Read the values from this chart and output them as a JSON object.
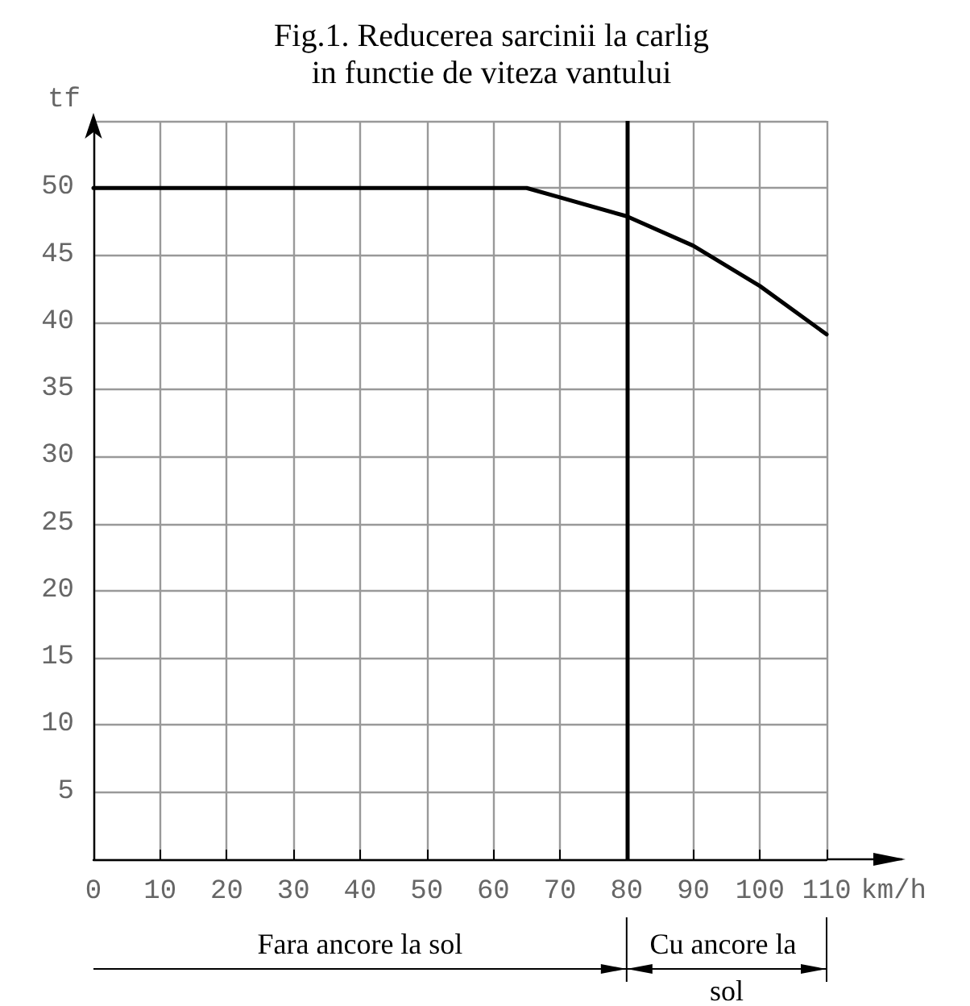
{
  "chart_data": {
    "type": "line",
    "title": "Fig.1. Reducerea sarcinii la carlig\nin functie de viteza vantului",
    "xlabel": "km/h",
    "ylabel": "tf",
    "x": [
      0,
      65,
      70,
      80,
      90,
      100,
      110
    ],
    "series": [
      {
        "color": "#000000",
        "values": [
          50,
          50,
          49.3,
          47.9,
          45.7,
          42.7,
          39.1
        ]
      }
    ],
    "xlim": [
      0,
      110
    ],
    "xticks": [
      0,
      10,
      20,
      30,
      40,
      50,
      60,
      70,
      80,
      90,
      100,
      110
    ],
    "ylim": [
      0,
      55
    ],
    "yticks": [
      {
        "value": 0,
        "label": null
      },
      5,
      10,
      15,
      20,
      25,
      30,
      35,
      40,
      45,
      50,
      {
        "value": 55,
        "label": null
      }
    ],
    "ref_lines": [
      {
        "axis": "x",
        "value": 80,
        "color": "#000000"
      }
    ],
    "annotations": [
      "Fara ancore la sol",
      "Cu ancore la sol"
    ],
    "grid": true,
    "marker": "none",
    "line_style": "solid"
  }
}
